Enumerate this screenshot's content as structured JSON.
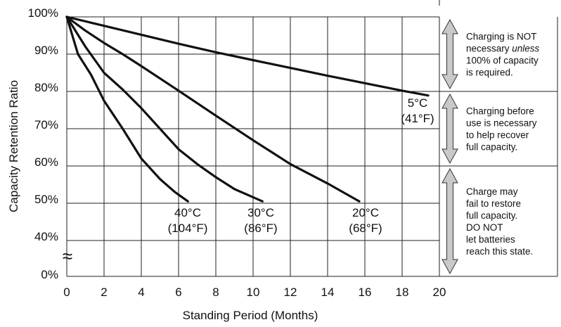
{
  "chart_data": {
    "type": "line",
    "xlabel": "Standing Period (Months)",
    "ylabel": "Capacity Retention Ratio",
    "xlim": [
      0,
      20
    ],
    "x_ticks": [
      "0",
      "2",
      "4",
      "6",
      "8",
      "10",
      "12",
      "14",
      "16",
      "18",
      "20"
    ],
    "y_ticks": [
      {
        "value": 100,
        "label": "100%"
      },
      {
        "value": 90,
        "label": "90%"
      },
      {
        "value": 80,
        "label": "80%"
      },
      {
        "value": 70,
        "label": "70%"
      },
      {
        "value": 60,
        "label": "60%"
      },
      {
        "value": 50,
        "label": "50%"
      },
      {
        "value": 40,
        "label": "40%"
      },
      {
        "value": 0,
        "label": "0%"
      }
    ],
    "axis_break": "≈",
    "grid": true,
    "series": [
      {
        "id": "s5",
        "label_c": "5°C",
        "label_f": "(41°F)",
        "points": [
          [
            0,
            100
          ],
          [
            2,
            97.6
          ],
          [
            4,
            95.2
          ],
          [
            6,
            92.8
          ],
          [
            8,
            90.5
          ],
          [
            10,
            88.4
          ],
          [
            12,
            86.3
          ],
          [
            14,
            84.2
          ],
          [
            16,
            82.2
          ],
          [
            18,
            80.2
          ],
          [
            19.4,
            78.9
          ]
        ]
      },
      {
        "id": "s20",
        "label_c": "20°C",
        "label_f": "(68°F)",
        "points": [
          [
            0,
            100
          ],
          [
            1,
            96.3
          ],
          [
            2,
            93.0
          ],
          [
            3,
            90.0
          ],
          [
            4,
            86.8
          ],
          [
            6,
            80.2
          ],
          [
            8,
            73.5
          ],
          [
            10,
            66.9
          ],
          [
            12,
            60.5
          ],
          [
            14,
            55.3
          ],
          [
            15.7,
            50.5
          ]
        ]
      },
      {
        "id": "s30",
        "label_c": "30°C",
        "label_f": "(86°F)",
        "points": [
          [
            0,
            100
          ],
          [
            1,
            92.0
          ],
          [
            2,
            85.0
          ],
          [
            3,
            80.5
          ],
          [
            4,
            75.5
          ],
          [
            5,
            70.0
          ],
          [
            6,
            64.5
          ],
          [
            7,
            60.5
          ],
          [
            8,
            57.0
          ],
          [
            9,
            53.8
          ],
          [
            10.5,
            50.5
          ]
        ]
      },
      {
        "id": "s40",
        "label_c": "40°C",
        "label_f": "(104°F)",
        "points": [
          [
            0,
            100
          ],
          [
            0.6,
            90.0
          ],
          [
            1.3,
            84.5
          ],
          [
            2,
            77.5
          ],
          [
            3,
            70.0
          ],
          [
            4,
            62.0
          ],
          [
            5,
            56.5
          ],
          [
            5.8,
            53.0
          ],
          [
            6.5,
            50.5
          ]
        ]
      }
    ],
    "zones": [
      {
        "id": "zone-1",
        "range": [
          80,
          100
        ],
        "lines": [
          "Charging is NOT",
          "necessary unless",
          "100% of capacity",
          "is required."
        ],
        "italic_word": "unless"
      },
      {
        "id": "zone-2",
        "range": [
          60,
          80
        ],
        "lines": [
          "Charging before",
          "use is necessary",
          "to help recover",
          "full capacity."
        ]
      },
      {
        "id": "zone-3",
        "range": [
          0,
          60
        ],
        "lines": [
          "Charge may",
          "fail to restore",
          "full capacity.",
          "DO NOT",
          "let batteries",
          "reach this state."
        ]
      }
    ],
    "colors": {
      "line": "#111111",
      "arrow_fill": "#c9c9c9",
      "grid": "#222222"
    }
  }
}
